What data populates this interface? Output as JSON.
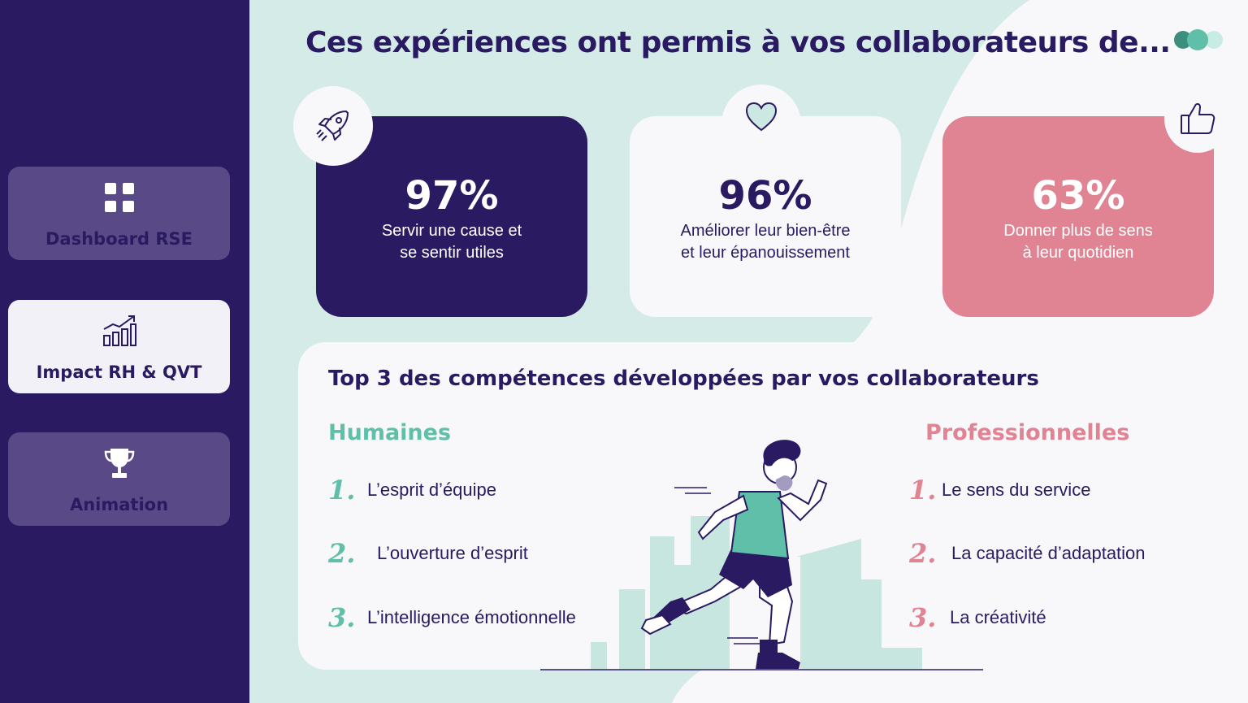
{
  "sidebar": {
    "items": [
      {
        "label": "Dashboard RSE",
        "icon": "grid-icon",
        "active": false
      },
      {
        "label": "Impact RH & QVT",
        "icon": "chart-growth-icon",
        "active": true
      },
      {
        "label": "Animation",
        "icon": "trophy-icon",
        "active": false
      }
    ]
  },
  "header": {
    "title": "Ces expériences ont permis à vos collaborateurs de..."
  },
  "logo": {
    "icon": "three-dots-logo",
    "colors": [
      "#3c8f7c",
      "#5fbfa9",
      "#c8ebe4"
    ]
  },
  "stats": [
    {
      "value": "97%",
      "line1": "Servir une cause et",
      "line2": "se sentir utiles",
      "icon": "rocket-icon",
      "color": "#2a1a62"
    },
    {
      "value": "96%",
      "line1": "Améliorer leur bien-être",
      "line2": "et leur épanouissement",
      "icon": "heart-icon",
      "color": "#f8f8fa"
    },
    {
      "value": "63%",
      "line1": "Donner plus de sens",
      "line2": "à leur quotidien",
      "icon": "thumbs-up-icon",
      "color": "#e08393"
    }
  ],
  "skills": {
    "title": "Top 3 des compétences développées par vos collaborateurs",
    "human": {
      "title": "Humaines",
      "items": [
        {
          "num": "1.",
          "label": "L’esprit d’équipe"
        },
        {
          "num": "2.",
          "label": "L’ouverture d’esprit"
        },
        {
          "num": "3.",
          "label": "L’intelligence émotionnelle"
        }
      ]
    },
    "professional": {
      "title": "Professionnelles",
      "items": [
        {
          "num": "1.",
          "label": "Le sens du service"
        },
        {
          "num": "2.",
          "label": "La capacité d’adaptation"
        },
        {
          "num": "3.",
          "label": "La créativité"
        }
      ]
    }
  },
  "colors": {
    "navy": "#2a1a62",
    "mint": "#5fbfa9",
    "pink": "#e08393",
    "background": "#d5ebe7",
    "card": "#f8f8fa"
  }
}
